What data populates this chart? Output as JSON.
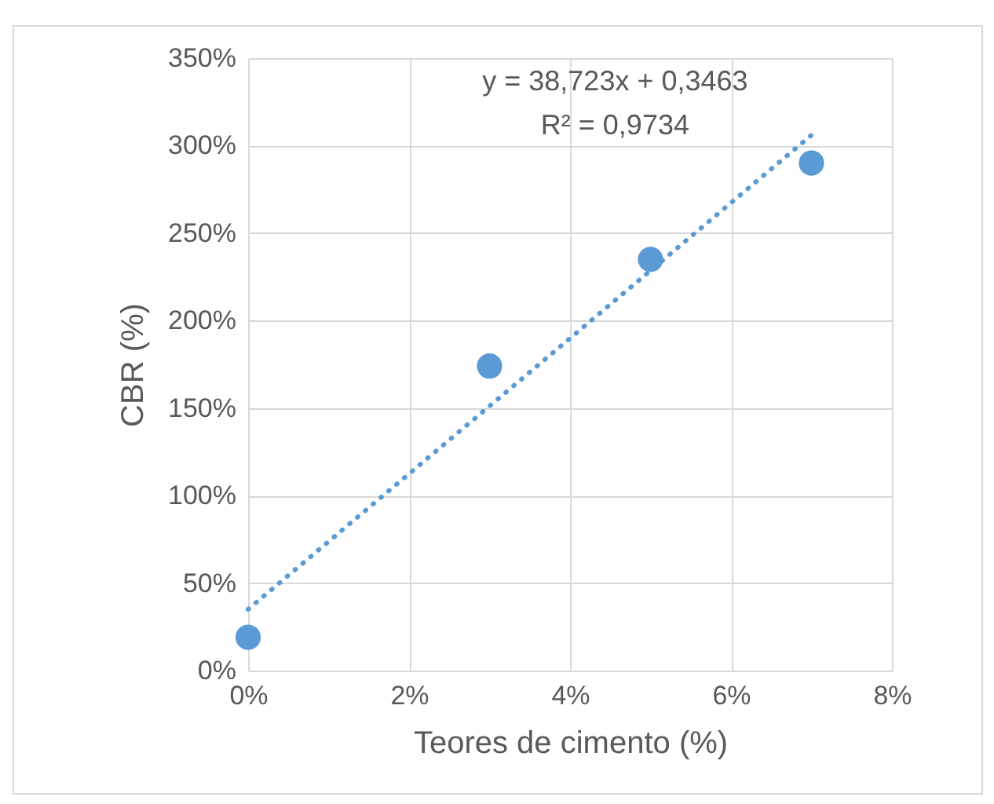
{
  "chart_data": {
    "type": "scatter",
    "xlabel": "Teores de cimento (%)",
    "ylabel": "CBR (%)",
    "annotations": [
      "y = 38,723x + 0,3463",
      "R² = 0,9734"
    ],
    "series": [
      {
        "color": "#5b9bd5",
        "x": [
          0,
          3,
          5,
          7
        ],
        "values": [
          19,
          174,
          235,
          290
        ],
        "marker": "circle"
      },
      {
        "type": "line",
        "color": "#5b9bd5",
        "x": [
          0,
          7
        ],
        "values": [
          35,
          306
        ],
        "line_style": "dotted"
      }
    ],
    "xlim": [
      0,
      8
    ],
    "xticks": [
      {
        "value": 0,
        "label": "0%"
      },
      {
        "value": 2,
        "label": "2%"
      },
      {
        "value": 4,
        "label": "4%"
      },
      {
        "value": 6,
        "label": "6%"
      },
      {
        "value": 8,
        "label": "8%"
      }
    ],
    "ylim": [
      0,
      350
    ],
    "yticks": [
      {
        "value": 0,
        "label": "0%"
      },
      {
        "value": 50,
        "label": "50%"
      },
      {
        "value": 100,
        "label": "100%"
      },
      {
        "value": 150,
        "label": "150%"
      },
      {
        "value": 200,
        "label": "200%"
      },
      {
        "value": 250,
        "label": "250%"
      },
      {
        "value": 300,
        "label": "300%"
      },
      {
        "value": 350,
        "label": "350%"
      }
    ],
    "grid": true
  }
}
